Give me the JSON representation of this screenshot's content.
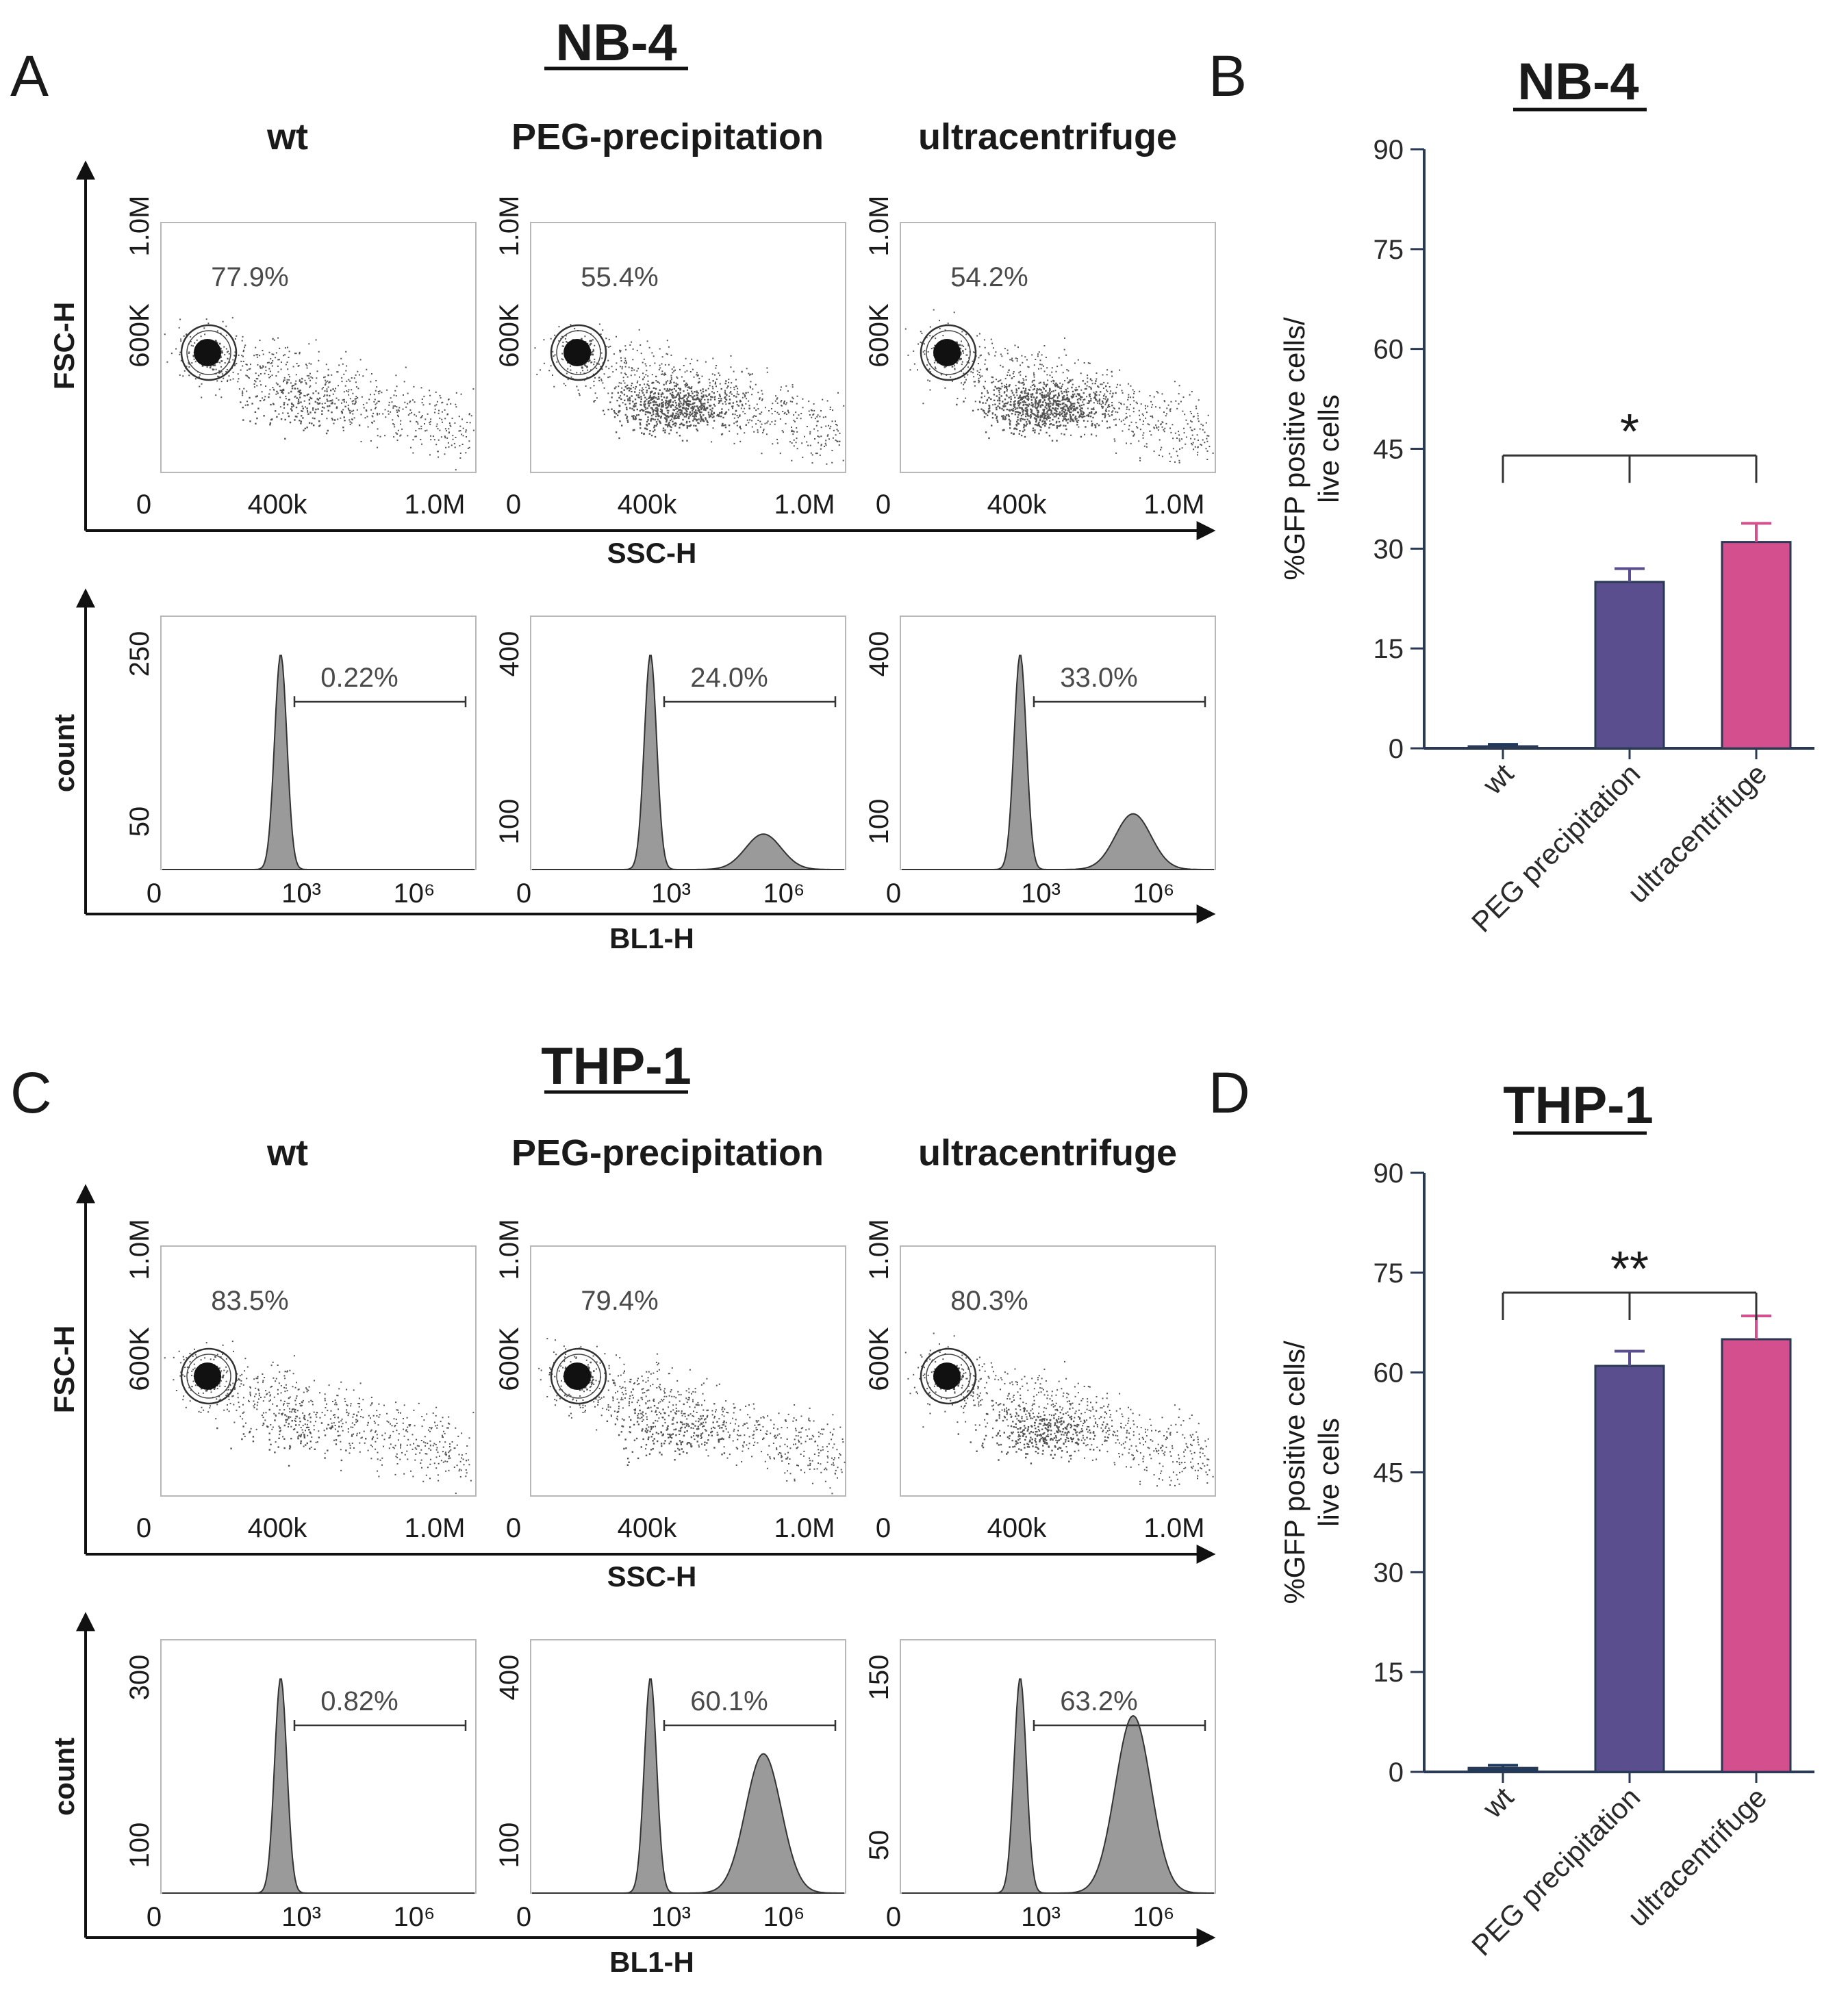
{
  "figure": {
    "sections": [
      {
        "flow_label": "A",
        "cell_line": "NB-4",
        "columns": [
          "wt",
          "PEG-precipitation",
          "ultracentrifuge"
        ],
        "scatter": {
          "y_axis_label": "FSC-H",
          "x_axis_label": "SSC-H",
          "y_ticks": [
            "600K",
            "1.0M"
          ],
          "x_ticks": [
            "0",
            "400k",
            "1.0M"
          ],
          "gate_percents": [
            "77.9%",
            "55.4%",
            "54.2%"
          ],
          "secondary_population": [
            0.15,
            0.75,
            0.8
          ]
        },
        "histogram": {
          "y_axis_label": "count",
          "x_axis_label": "BL1-H",
          "x_ticks": [
            "0",
            "10³",
            "10⁶"
          ],
          "y_ticks": [
            [
              "50",
              "250"
            ],
            [
              "100",
              "400"
            ],
            [
              "100",
              "400"
            ]
          ],
          "gate_percents": [
            "0.22%",
            "24.0%",
            "33.0%"
          ],
          "positive_peak_height": [
            0.0,
            0.14,
            0.22
          ]
        }
      },
      {
        "flow_label": "C",
        "cell_line": "THP-1",
        "columns": [
          "wt",
          "PEG-precipitation",
          "ultracentrifuge"
        ],
        "scatter": {
          "y_axis_label": "FSC-H",
          "x_axis_label": "SSC-H",
          "y_ticks": [
            "600K",
            "1.0M"
          ],
          "x_ticks": [
            "0",
            "400k",
            "1.0M"
          ],
          "gate_percents": [
            "83.5%",
            "79.4%",
            "80.3%"
          ],
          "secondary_population": [
            0.1,
            0.2,
            0.35
          ]
        },
        "histogram": {
          "y_axis_label": "count",
          "x_axis_label": "BL1-H",
          "x_ticks": [
            "0",
            "10³",
            "10⁶"
          ],
          "y_ticks": [
            [
              "100",
              "300"
            ],
            [
              "100",
              "400"
            ],
            [
              "50",
              "150"
            ]
          ],
          "gate_percents": [
            "0.82%",
            "60.1%",
            "63.2%"
          ],
          "positive_peak_height": [
            0.0,
            0.55,
            0.7
          ]
        }
      }
    ]
  },
  "chart_data": [
    {
      "panel": "B",
      "type": "bar",
      "title": "NB-4",
      "categories": [
        "wt",
        "PEG precipitation",
        "ultracentrifuge"
      ],
      "values": [
        0.3,
        25,
        31
      ],
      "errors": [
        0.3,
        2,
        2.8
      ],
      "colors": [
        "#1f3a5f",
        "#5b4e8e",
        "#d44f8e"
      ],
      "ylabel": "%GFP positive cells/ live cells",
      "ylabel_lines": [
        "%GFP positive cells/",
        "live cells"
      ],
      "ylim": [
        0,
        90
      ],
      "yticks": [
        0,
        15,
        30,
        45,
        60,
        75,
        90
      ],
      "significance": "*",
      "significance_y": 44
    },
    {
      "panel": "D",
      "type": "bar",
      "title": "THP-1",
      "categories": [
        "wt",
        "PEG precipitation",
        "ultracentrifuge"
      ],
      "values": [
        0.6,
        61,
        65
      ],
      "errors": [
        0.4,
        2.2,
        3.5
      ],
      "colors": [
        "#1f3a5f",
        "#5b4e8e",
        "#d44f8e"
      ],
      "ylabel": "%GFP positive cells/ live cells",
      "ylabel_lines": [
        "%GFP positive cells/",
        "live cells"
      ],
      "ylim": [
        0,
        90
      ],
      "yticks": [
        0,
        15,
        30,
        45,
        60,
        75,
        90
      ],
      "significance": "**",
      "significance_y": 72
    }
  ]
}
